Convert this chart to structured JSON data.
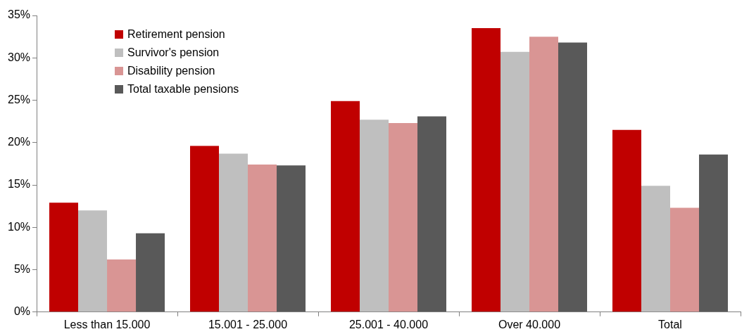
{
  "chart_data": {
    "type": "bar",
    "categories": [
      "Less than 15.000",
      "15.001 - 25.000",
      "25.001 - 40.000",
      "Over 40.000",
      "Total"
    ],
    "series": [
      {
        "name": "Retirement pension",
        "color": "#c00000",
        "values": [
          12.9,
          19.6,
          24.9,
          33.5,
          21.5
        ]
      },
      {
        "name": "Survivor's pension",
        "color": "#bfbfbf",
        "values": [
          12.0,
          18.7,
          22.7,
          30.7,
          14.9
        ]
      },
      {
        "name": "Disability  pension",
        "color": "#d99594",
        "values": [
          6.2,
          17.4,
          22.3,
          32.5,
          12.3
        ]
      },
      {
        "name": "Total taxable pensions",
        "color": "#595959",
        "values": [
          9.3,
          17.3,
          23.1,
          31.8,
          18.6
        ]
      }
    ],
    "ylim": [
      0,
      35
    ],
    "yticks": [
      {
        "value": 0,
        "label": "0%"
      },
      {
        "value": 5,
        "label": "5%"
      },
      {
        "value": 10,
        "label": "10%"
      },
      {
        "value": 15,
        "label": "15%"
      },
      {
        "value": 20,
        "label": "20%"
      },
      {
        "value": 25,
        "label": "25%"
      },
      {
        "value": 30,
        "label": "30%"
      },
      {
        "value": 35,
        "label": "35%"
      }
    ],
    "grid": false,
    "legend": "top left"
  }
}
